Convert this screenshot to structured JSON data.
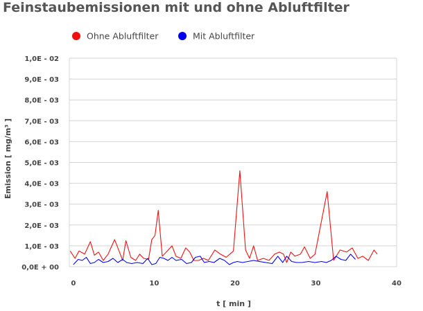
{
  "chart_data": {
    "type": "line",
    "title": "Feinstaubemissionen mit und ohne Abluftfilter",
    "xlabel": "t [ min ]",
    "ylabel": "Emission [ mg/m³ ]",
    "xlim": [
      -0.5,
      40
    ],
    "ylim": [
      0,
      0.01
    ],
    "x_ticks": [
      0,
      10,
      20,
      30,
      40
    ],
    "x_tick_labels": [
      "0",
      "10",
      "20",
      "30",
      "40"
    ],
    "y_ticks": [
      0,
      0.001,
      0.002,
      0.003,
      0.004,
      0.005,
      0.006,
      0.007,
      0.008,
      0.009,
      0.01
    ],
    "y_tick_labels": [
      "0,0E + 00",
      "1,0E - 03",
      "2,0E - 03",
      "3,0E - 03",
      "4,0E - 03",
      "5,0E - 03",
      "6,0E - 03",
      "7,0E - 03",
      "8,0E - 03",
      "9,0E - 03",
      "1,0E - 02"
    ],
    "grid": true,
    "legend_position": "top-left",
    "series": [
      {
        "name": "Ohne Abluftfilter",
        "color": "#ee1111",
        "points": [
          [
            -0.4,
            0.00075
          ],
          [
            0.2,
            0.0004
          ],
          [
            0.7,
            0.00075
          ],
          [
            1.4,
            0.0006
          ],
          [
            2.1,
            0.0012
          ],
          [
            2.6,
            0.00055
          ],
          [
            3.1,
            0.0007
          ],
          [
            3.7,
            0.0003
          ],
          [
            4.3,
            0.0006
          ],
          [
            5.1,
            0.0013
          ],
          [
            5.7,
            0.0007
          ],
          [
            6.1,
            0.0003
          ],
          [
            6.5,
            0.00125
          ],
          [
            7.1,
            0.00045
          ],
          [
            7.7,
            0.0003
          ],
          [
            8.2,
            0.0006
          ],
          [
            8.7,
            0.0004
          ],
          [
            9.3,
            0.00035
          ],
          [
            9.7,
            0.0013
          ],
          [
            10.1,
            0.0015
          ],
          [
            10.5,
            0.0027
          ],
          [
            11.0,
            0.0005
          ],
          [
            11.5,
            0.0007
          ],
          [
            12.2,
            0.001
          ],
          [
            12.7,
            0.0005
          ],
          [
            13.3,
            0.0004
          ],
          [
            13.9,
            0.0009
          ],
          [
            14.4,
            0.0007
          ],
          [
            14.9,
            0.0003
          ],
          [
            15.5,
            0.0003
          ],
          [
            16.1,
            0.0004
          ],
          [
            16.7,
            0.0003
          ],
          [
            17.5,
            0.0008
          ],
          [
            18.2,
            0.0006
          ],
          [
            18.9,
            0.00045
          ],
          [
            19.8,
            0.00075
          ],
          [
            20.6,
            0.0046
          ],
          [
            21.3,
            0.0008
          ],
          [
            21.8,
            0.0004
          ],
          [
            22.3,
            0.001
          ],
          [
            22.8,
            0.0003
          ],
          [
            23.5,
            0.0004
          ],
          [
            24.2,
            0.0003
          ],
          [
            24.9,
            0.0006
          ],
          [
            25.5,
            0.0007
          ],
          [
            26.0,
            0.0006
          ],
          [
            26.4,
            0.0002
          ],
          [
            26.9,
            0.0007
          ],
          [
            27.4,
            0.0005
          ],
          [
            28.1,
            0.0006
          ],
          [
            28.6,
            0.00095
          ],
          [
            29.3,
            0.0004
          ],
          [
            29.9,
            0.0006
          ],
          [
            31.4,
            0.0036
          ],
          [
            32.2,
            0.0003
          ],
          [
            33.0,
            0.0008
          ],
          [
            33.8,
            0.0007
          ],
          [
            34.5,
            0.0009
          ],
          [
            35.2,
            0.0004
          ],
          [
            35.8,
            0.0005
          ],
          [
            36.5,
            0.0003
          ],
          [
            37.2,
            0.0008
          ],
          [
            37.6,
            0.0006
          ]
        ]
      },
      {
        "name": "Mit Abluftfilter",
        "color": "#0000ee",
        "points": [
          [
            0.0,
            0.0001
          ],
          [
            0.6,
            0.00035
          ],
          [
            1.1,
            0.0003
          ],
          [
            1.6,
            0.00045
          ],
          [
            2.1,
            0.00015
          ],
          [
            2.6,
            0.0002
          ],
          [
            3.1,
            0.00035
          ],
          [
            3.7,
            0.0002
          ],
          [
            4.3,
            0.00025
          ],
          [
            4.9,
            0.0004
          ],
          [
            5.5,
            0.0002
          ],
          [
            6.1,
            0.00035
          ],
          [
            6.6,
            0.0002
          ],
          [
            7.2,
            0.00015
          ],
          [
            7.9,
            0.0002
          ],
          [
            8.6,
            0.00015
          ],
          [
            9.2,
            0.0004
          ],
          [
            9.7,
            0.0001
          ],
          [
            10.2,
            0.00015
          ],
          [
            10.7,
            0.00045
          ],
          [
            11.2,
            0.0004
          ],
          [
            11.7,
            0.0003
          ],
          [
            12.2,
            0.00045
          ],
          [
            12.7,
            0.0003
          ],
          [
            13.4,
            0.00035
          ],
          [
            14.0,
            0.00015
          ],
          [
            14.6,
            0.0002
          ],
          [
            15.1,
            0.00045
          ],
          [
            15.7,
            0.0005
          ],
          [
            16.2,
            0.0002
          ],
          [
            16.8,
            0.00025
          ],
          [
            17.4,
            0.0002
          ],
          [
            18.1,
            0.0004
          ],
          [
            18.7,
            0.0003
          ],
          [
            19.3,
            0.0001
          ],
          [
            19.8,
            0.0002
          ],
          [
            20.3,
            0.00025
          ],
          [
            20.9,
            0.0002
          ],
          [
            21.6,
            0.00025
          ],
          [
            22.3,
            0.0003
          ],
          [
            23.0,
            0.00025
          ],
          [
            23.8,
            0.0002
          ],
          [
            24.6,
            0.00015
          ],
          [
            25.3,
            0.0005
          ],
          [
            25.9,
            0.0002
          ],
          [
            26.4,
            0.0005
          ],
          [
            27.0,
            0.00025
          ],
          [
            27.6,
            0.0002
          ],
          [
            28.3,
            0.0002
          ],
          [
            29.1,
            0.00025
          ],
          [
            29.9,
            0.0002
          ],
          [
            30.7,
            0.00025
          ],
          [
            31.3,
            0.0002
          ],
          [
            31.9,
            0.0003
          ],
          [
            32.5,
            0.0005
          ],
          [
            33.1,
            0.00035
          ],
          [
            33.7,
            0.0003
          ],
          [
            34.3,
            0.0006
          ],
          [
            34.9,
            0.00035
          ]
        ]
      }
    ]
  }
}
